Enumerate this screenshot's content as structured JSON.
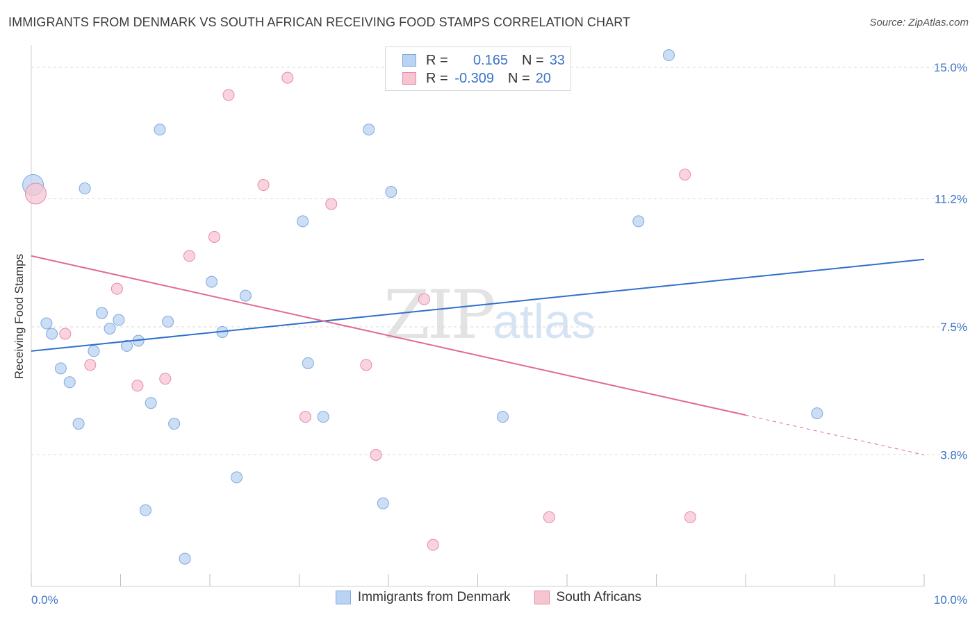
{
  "header": {
    "title": "IMMIGRANTS FROM DENMARK VS SOUTH AFRICAN RECEIVING FOOD STAMPS CORRELATION CHART",
    "source": "Source: ZipAtlas.com"
  },
  "watermark": {
    "zip": "ZIP",
    "atlas": "atlas"
  },
  "legend": {
    "rows": [
      {
        "r_label": "R =",
        "r_value": "0.165",
        "n_label": "N =",
        "n_value": "33"
      },
      {
        "r_label": "R =",
        "r_value": "-0.309",
        "n_label": "N =",
        "n_value": "20"
      }
    ]
  },
  "colors": {
    "blue_fill": "#b9d3f2",
    "blue_stroke": "#7fa8dc",
    "blue_line": "#2f6fcc",
    "pink_fill": "#f7c4d2",
    "pink_stroke": "#e88aa6",
    "pink_line": "#e06b93",
    "tick_text": "#3b74c7",
    "grid": "#d9d9d9"
  },
  "chart_data": {
    "type": "scatter",
    "title": "IMMIGRANTS FROM DENMARK VS SOUTH AFRICAN RECEIVING FOOD STAMPS CORRELATION CHART",
    "xlabel": "",
    "ylabel": "Receiving Food Stamps",
    "xlim": [
      0,
      10
    ],
    "ylim": [
      0,
      15.4
    ],
    "x_tick_labels": [
      "0.0%",
      "10.0%"
    ],
    "y_ticks": [
      3.8,
      7.5,
      11.2,
      15.0
    ],
    "y_tick_labels": [
      "3.8%",
      "7.5%",
      "11.2%",
      "15.0%"
    ],
    "grid": "horizontal dashed",
    "legend_position": "top-center",
    "series": [
      {
        "name": "Immigrants from Denmark",
        "color": "#b9d3f2",
        "points": [
          [
            0.02,
            11.6
          ],
          [
            0.6,
            11.5
          ],
          [
            1.44,
            13.2
          ],
          [
            3.78,
            13.2
          ],
          [
            7.14,
            15.35
          ],
          [
            0.17,
            7.6
          ],
          [
            0.23,
            7.3
          ],
          [
            0.33,
            6.3
          ],
          [
            0.43,
            5.9
          ],
          [
            0.53,
            4.7
          ],
          [
            0.7,
            6.8
          ],
          [
            0.79,
            7.9
          ],
          [
            0.88,
            7.45
          ],
          [
            0.98,
            7.7
          ],
          [
            1.07,
            6.95
          ],
          [
            1.2,
            7.1
          ],
          [
            1.34,
            5.3
          ],
          [
            1.28,
            2.2
          ],
          [
            1.53,
            7.65
          ],
          [
            1.6,
            4.7
          ],
          [
            1.72,
            0.8
          ],
          [
            2.02,
            8.8
          ],
          [
            2.14,
            7.35
          ],
          [
            2.3,
            3.15
          ],
          [
            2.4,
            8.4
          ],
          [
            4.03,
            11.4
          ],
          [
            3.04,
            10.55
          ],
          [
            3.1,
            6.45
          ],
          [
            3.27,
            4.9
          ],
          [
            3.94,
            2.4
          ],
          [
            5.28,
            4.9
          ],
          [
            6.8,
            10.55
          ],
          [
            8.8,
            5.0
          ]
        ]
      },
      {
        "name": "South Africans",
        "color": "#f7c4d2",
        "points": [
          [
            0.05,
            11.35
          ],
          [
            0.38,
            7.3
          ],
          [
            0.66,
            6.4
          ],
          [
            0.96,
            8.6
          ],
          [
            1.19,
            5.8
          ],
          [
            1.5,
            6.0
          ],
          [
            1.77,
            9.55
          ],
          [
            2.05,
            10.1
          ],
          [
            2.21,
            14.2
          ],
          [
            2.6,
            11.6
          ],
          [
            2.87,
            14.7
          ],
          [
            3.07,
            4.9
          ],
          [
            3.36,
            11.05
          ],
          [
            3.75,
            6.4
          ],
          [
            3.86,
            3.8
          ],
          [
            4.4,
            8.3
          ],
          [
            4.5,
            1.2
          ],
          [
            5.8,
            2.0
          ],
          [
            7.32,
            11.9
          ],
          [
            7.38,
            2.0
          ]
        ]
      }
    ],
    "trend_lines": [
      {
        "series": "Immigrants from Denmark",
        "from": [
          0,
          6.8
        ],
        "to": [
          10,
          9.45
        ]
      },
      {
        "series": "South Africans",
        "from": [
          0,
          9.55
        ],
        "to": [
          8.0,
          4.95
        ],
        "dashed_to": [
          10,
          3.8
        ]
      }
    ]
  },
  "bottom_legend": [
    {
      "label": "Immigrants from Denmark"
    },
    {
      "label": "South Africans"
    }
  ]
}
